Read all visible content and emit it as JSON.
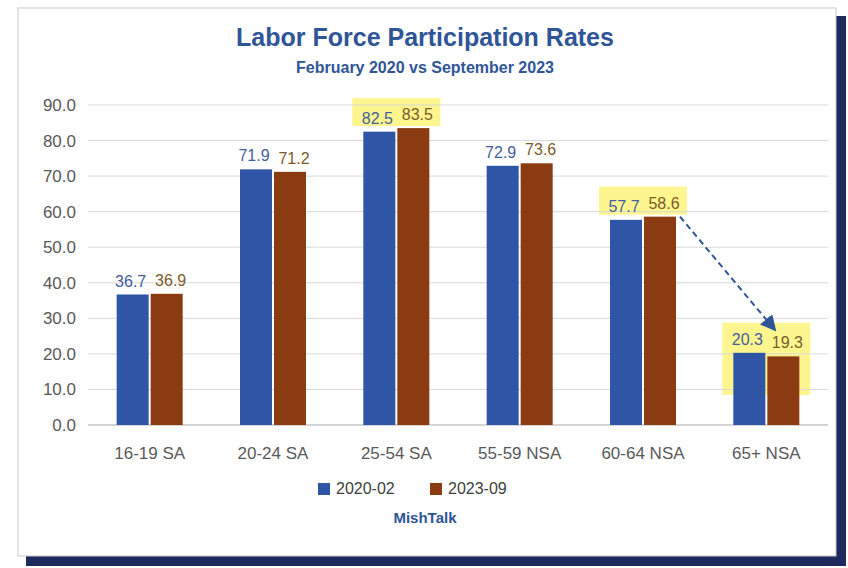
{
  "chart_data": {
    "type": "bar",
    "title": "Labor Force Participation Rates",
    "subtitle": "February 2020 vs September 2023",
    "source": "MishTalk",
    "categories": [
      "16-19 SA",
      "20-24 SA",
      "25-54 SA",
      "55-59 NSA",
      "60-64 NSA",
      "65+ NSA"
    ],
    "series": [
      {
        "name": "2020-02",
        "color": "#2f56a6",
        "values": [
          36.7,
          71.9,
          82.5,
          72.9,
          57.7,
          20.3
        ]
      },
      {
        "name": "2023-09",
        "color": "#8a3b12",
        "values": [
          36.9,
          71.2,
          83.5,
          73.6,
          58.6,
          19.3
        ]
      }
    ],
    "ylim": [
      0,
      90
    ],
    "yticks": [
      {
        "value": 0,
        "label": "0.0"
      },
      {
        "value": 10,
        "label": "10.0"
      },
      {
        "value": 20,
        "label": "20.0"
      },
      {
        "value": 30,
        "label": "30.0"
      },
      {
        "value": 40,
        "label": "40.0"
      },
      {
        "value": 50,
        "label": "50.0"
      },
      {
        "value": 60,
        "label": "60.0"
      },
      {
        "value": 70,
        "label": "70.0"
      },
      {
        "value": 80,
        "label": "80.0"
      },
      {
        "value": 90,
        "label": "90.0"
      }
    ],
    "grid": true,
    "legend": "bottom",
    "data_labels": true
  }
}
